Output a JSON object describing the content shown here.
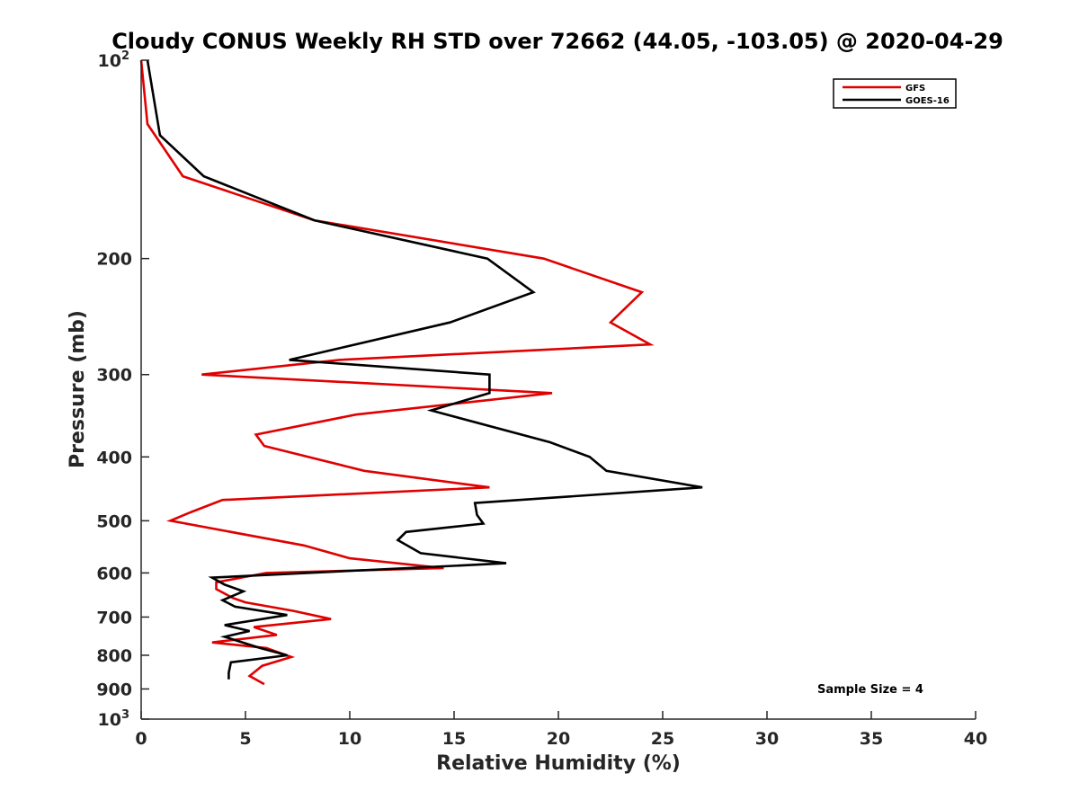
{
  "chart_data": {
    "type": "line",
    "title": "Cloudy CONUS Weekly RH STD over 72662 (44.05, -103.05) @ 2020-04-29",
    "xlabel": "Relative Humidity (%)",
    "ylabel": "Pressure (mb)",
    "xlim": [
      0,
      40
    ],
    "ylim": [
      100,
      1000
    ],
    "y_scale": "log",
    "y_reversed": true,
    "grid": false,
    "legend_position": "top-right",
    "x_ticks": [
      0,
      5,
      10,
      15,
      20,
      25,
      30,
      35,
      40
    ],
    "y_ticks": [
      {
        "value": 100,
        "label": "10",
        "sup": "2"
      },
      {
        "value": 200,
        "label": "200"
      },
      {
        "value": 300,
        "label": "300"
      },
      {
        "value": 400,
        "label": "400"
      },
      {
        "value": 500,
        "label": "500"
      },
      {
        "value": 600,
        "label": "600"
      },
      {
        "value": 700,
        "label": "700"
      },
      {
        "value": 800,
        "label": "800"
      },
      {
        "value": 900,
        "label": "900"
      },
      {
        "value": 1000,
        "label": "10",
        "sup": "3"
      }
    ],
    "series": [
      {
        "name": "GFS",
        "color": "#e00000",
        "points": [
          [
            0.0,
            100
          ],
          [
            0.3,
            125
          ],
          [
            2.0,
            150
          ],
          [
            8.3,
            175
          ],
          [
            19.3,
            200
          ],
          [
            24.0,
            225
          ],
          [
            22.5,
            250
          ],
          [
            24.4,
            270
          ],
          [
            9.5,
            285
          ],
          [
            2.9,
            300
          ],
          [
            19.7,
            320
          ],
          [
            10.3,
            345
          ],
          [
            5.5,
            370
          ],
          [
            5.9,
            385
          ],
          [
            10.7,
            420
          ],
          [
            16.7,
            445
          ],
          [
            3.9,
            465
          ],
          [
            2.4,
            485
          ],
          [
            1.4,
            500
          ],
          [
            7.8,
            545
          ],
          [
            10.0,
            570
          ],
          [
            14.5,
            590
          ],
          [
            6.0,
            600
          ],
          [
            3.6,
            620
          ],
          [
            3.6,
            635
          ],
          [
            4.4,
            655
          ],
          [
            5.0,
            665
          ],
          [
            7.3,
            685
          ],
          [
            9.1,
            705
          ],
          [
            5.4,
            725
          ],
          [
            6.5,
            745
          ],
          [
            3.4,
            765
          ],
          [
            6.0,
            780
          ],
          [
            7.2,
            805
          ],
          [
            5.8,
            830
          ],
          [
            5.2,
            860
          ],
          [
            5.9,
            885
          ]
        ]
      },
      {
        "name": "GOES-16",
        "color": "#000000",
        "points": [
          [
            0.3,
            100
          ],
          [
            0.9,
            130
          ],
          [
            3.0,
            150
          ],
          [
            8.3,
            175
          ],
          [
            16.6,
            200
          ],
          [
            18.8,
            225
          ],
          [
            14.8,
            250
          ],
          [
            7.1,
            285
          ],
          [
            16.7,
            300
          ],
          [
            16.7,
            320
          ],
          [
            13.9,
            340
          ],
          [
            19.6,
            380
          ],
          [
            21.5,
            400
          ],
          [
            22.3,
            420
          ],
          [
            26.9,
            445
          ],
          [
            16.0,
            470
          ],
          [
            16.1,
            490
          ],
          [
            16.4,
            505
          ],
          [
            12.7,
            520
          ],
          [
            12.3,
            535
          ],
          [
            13.4,
            560
          ],
          [
            17.5,
            580
          ],
          [
            3.4,
            610
          ],
          [
            4.0,
            625
          ],
          [
            4.9,
            640
          ],
          [
            3.9,
            660
          ],
          [
            4.5,
            675
          ],
          [
            7.0,
            695
          ],
          [
            4.0,
            720
          ],
          [
            5.2,
            735
          ],
          [
            4.0,
            750
          ],
          [
            5.7,
            780
          ],
          [
            7.0,
            800
          ],
          [
            4.3,
            820
          ],
          [
            4.2,
            850
          ],
          [
            4.2,
            870
          ]
        ]
      }
    ],
    "annotations": [
      {
        "text": "Sample Size = 4",
        "position": "bottom-right"
      }
    ]
  }
}
